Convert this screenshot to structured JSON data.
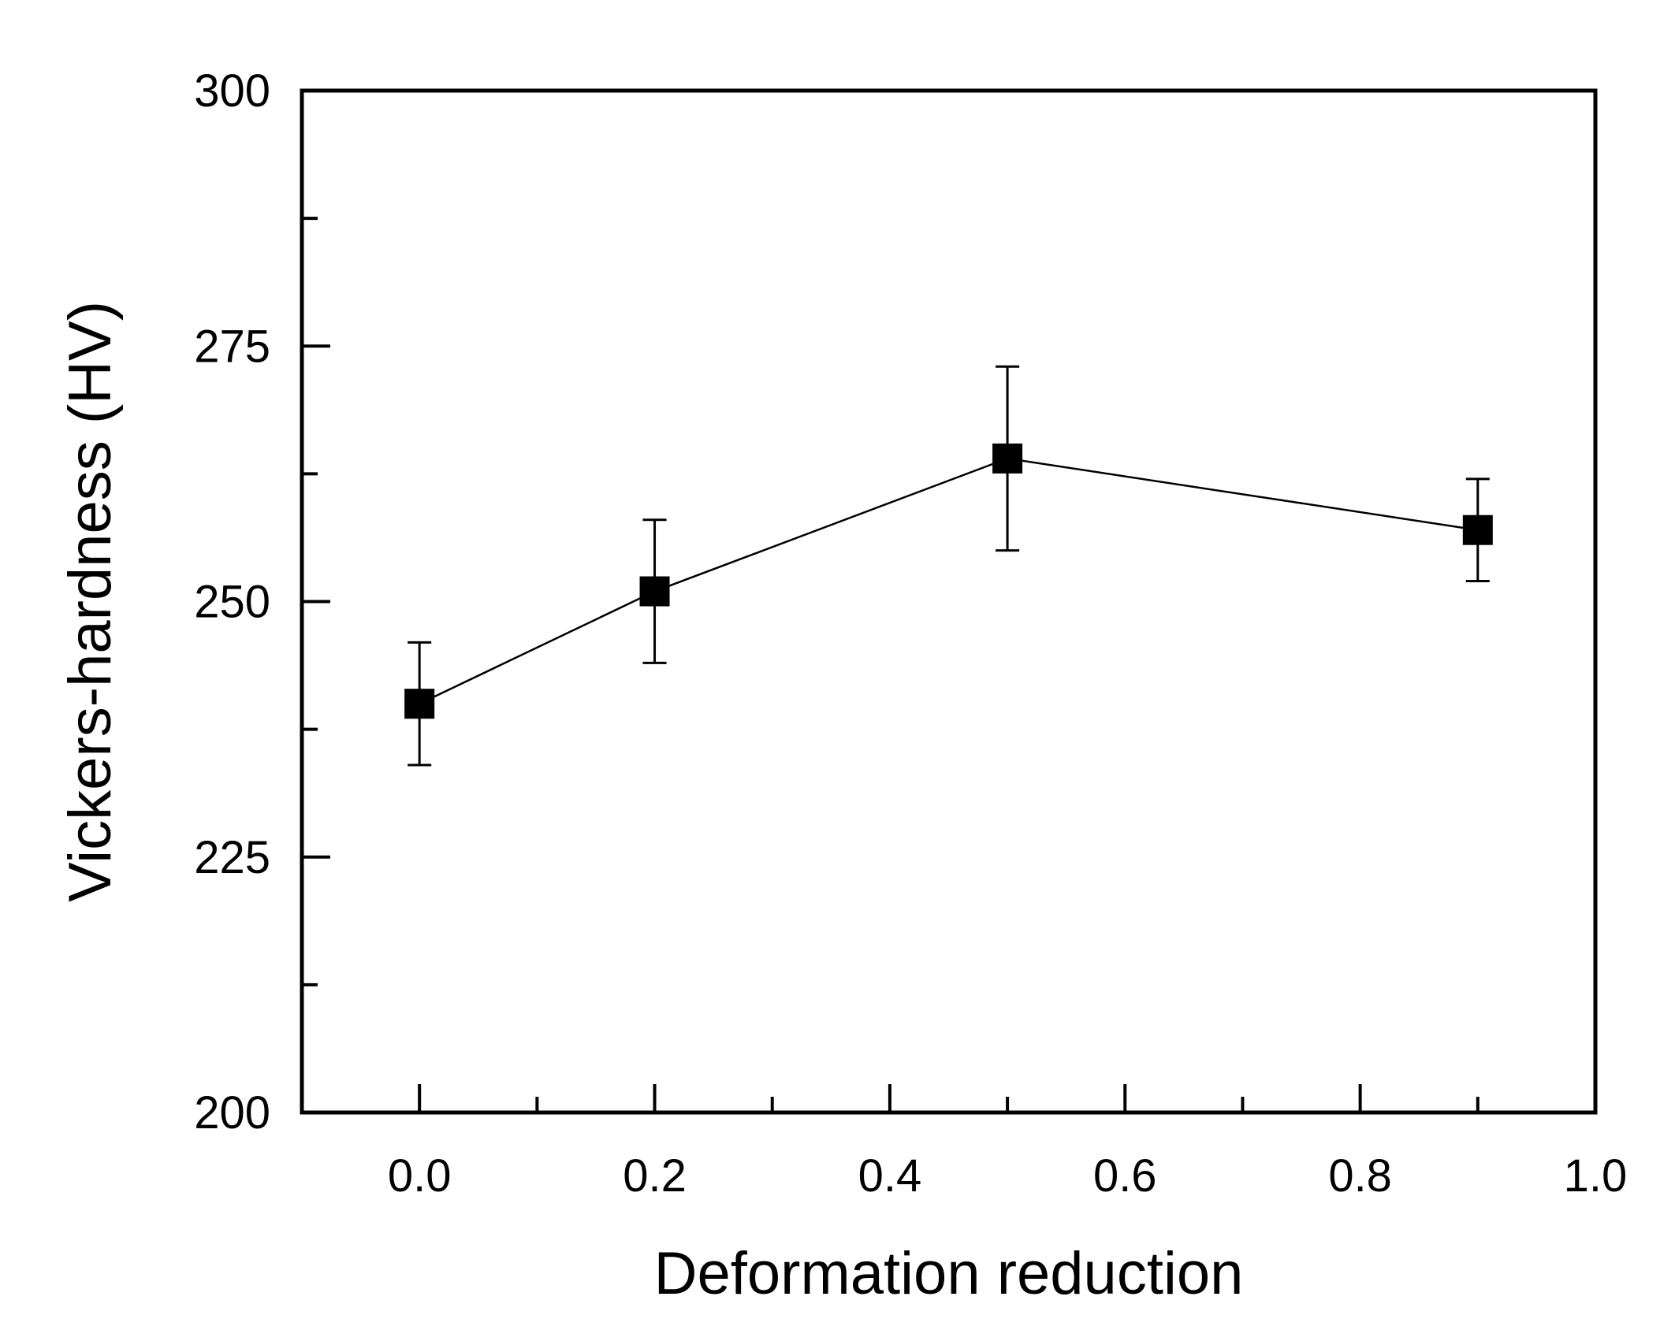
{
  "chart_data": {
    "type": "scatter",
    "title": "",
    "xlabel": "Deformation reduction",
    "ylabel": "Vickers-hardness (HV)",
    "xlim": [
      -0.1,
      1.0
    ],
    "ylim": [
      200,
      300
    ],
    "x_ticks": [
      {
        "value": 0.0,
        "label": "0.0"
      },
      {
        "value": 0.2,
        "label": "0.2"
      },
      {
        "value": 0.4,
        "label": "0.4"
      },
      {
        "value": 0.6,
        "label": "0.6"
      },
      {
        "value": 0.8,
        "label": "0.8"
      },
      {
        "value": 1.0,
        "label": "1.0"
      }
    ],
    "x_minor_ticks": [
      0.1,
      0.3,
      0.5,
      0.7,
      0.9
    ],
    "y_ticks": [
      {
        "value": 200,
        "label": "200"
      },
      {
        "value": 225,
        "label": "225"
      },
      {
        "value": 250,
        "label": "250"
      },
      {
        "value": 275,
        "label": "275"
      },
      {
        "value": 300,
        "label": "300"
      }
    ],
    "y_minor_ticks": [
      212.5,
      237.5,
      262.5,
      287.5
    ],
    "grid": false,
    "series": [
      {
        "name": "Vickers-hardness",
        "marker": "square",
        "connected": true,
        "color": "#000000",
        "points": [
          {
            "x": 0.0,
            "y": 240,
            "err_low": 234,
            "err_high": 246
          },
          {
            "x": 0.2,
            "y": 251,
            "err_low": 244,
            "err_high": 258
          },
          {
            "x": 0.5,
            "y": 264,
            "err_low": 255,
            "err_high": 273
          },
          {
            "x": 0.9,
            "y": 257,
            "err_low": 252,
            "err_high": 262
          }
        ]
      }
    ]
  }
}
